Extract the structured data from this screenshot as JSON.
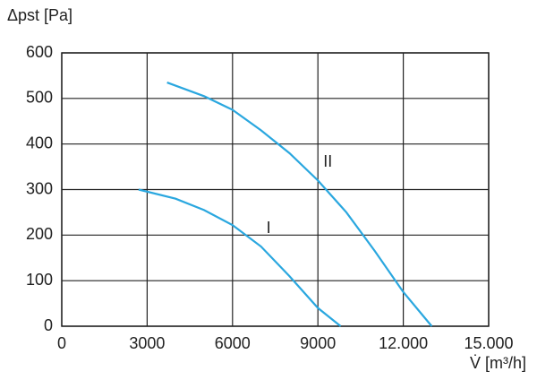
{
  "chart_data": {
    "type": "line",
    "ylabel": "Δpst [Pa]",
    "xlabel": "V̇ [m³/h]",
    "xlim": [
      0,
      15000
    ],
    "xticks": [
      0,
      3000,
      6000,
      9000,
      {
        "value": 12000,
        "label": "12.000"
      },
      {
        "value": 15000,
        "label": "15.000"
      }
    ],
    "ylim": [
      0,
      600
    ],
    "yticks": [
      0,
      100,
      200,
      300,
      400,
      500,
      600
    ],
    "grid": true,
    "series": [
      {
        "name": "I",
        "color": "#2aa7df",
        "x": [
          2700,
          4000,
          5000,
          6000,
          7000,
          8000,
          9000,
          9800
        ],
        "values": [
          300,
          280,
          255,
          222,
          175,
          110,
          40,
          0
        ]
      },
      {
        "name": "II",
        "color": "#2aa7df",
        "x": [
          3700,
          5000,
          6000,
          7000,
          8000,
          9000,
          10000,
          11000,
          12000,
          13000
        ],
        "values": [
          535,
          505,
          475,
          430,
          380,
          320,
          250,
          165,
          75,
          0
        ]
      }
    ]
  }
}
